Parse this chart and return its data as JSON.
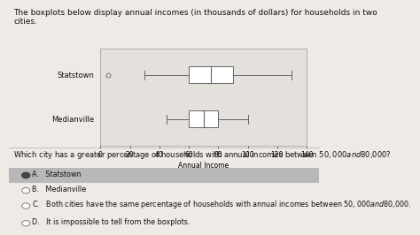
{
  "title_line1": "The boxplots below display annual incomes (in thousands of dollars) for households in two",
  "title_line2": "cities.",
  "xlabel": "Annual Income",
  "xlim": [
    0,
    140
  ],
  "xticks": [
    0,
    20,
    40,
    60,
    80,
    100,
    120,
    140
  ],
  "cities": [
    "Statstown",
    "Medianville"
  ],
  "statstown": {
    "q1": 60,
    "median": 75,
    "q3": 90,
    "whisker_low": 30,
    "whisker_high": 130,
    "outlier": 5
  },
  "medianville": {
    "q1": 60,
    "median": 70,
    "q3": 80,
    "whisker_low": 45,
    "whisker_high": 100
  },
  "question": "Which city has a greater percentage of households with annual incomes between $50,000 and $80,000?",
  "choices": [
    "Statstown",
    "Medianville",
    "Both cities have the same percentage of households with annual incomes between $50,000 and $80,000.",
    "It is impossible to tell from the boxplots."
  ],
  "choice_labels": [
    "A.",
    "B.",
    "C.",
    "D."
  ],
  "answer_index": 0,
  "bg_color": "#eeebe6",
  "plot_bg": "#e4e0db",
  "box_edge": "#666666",
  "whisker_color": "#666666",
  "text_color": "#111111",
  "answer_bg": "#b8b8b8",
  "fontsize_title": 6.5,
  "fontsize_axis": 5.5,
  "fontsize_ylabel": 6.0,
  "fontsize_question": 6.0,
  "fontsize_choices": 5.8
}
